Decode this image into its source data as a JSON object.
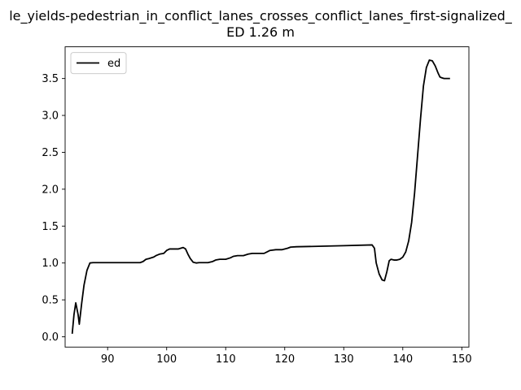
{
  "chart_data": {
    "type": "line",
    "title": "le_yields-pedestrian_in_conflict_lanes_crosses_conflict_lanes_first-signalized_",
    "subtitle": "ED 1.26 m",
    "xlabel": "",
    "ylabel": "",
    "xlim": [
      82.8,
      151.2
    ],
    "ylim": [
      -0.14,
      3.93
    ],
    "xticks": [
      90,
      100,
      110,
      120,
      130,
      140,
      150
    ],
    "yticks": [
      0.0,
      0.5,
      1.0,
      1.5,
      2.0,
      2.5,
      3.0,
      3.5
    ],
    "xtick_labels": [
      "90",
      "100",
      "110",
      "120",
      "130",
      "140",
      "150"
    ],
    "ytick_labels": [
      "0.0",
      "0.5",
      "1.0",
      "1.5",
      "2.0",
      "2.5",
      "3.0",
      "3.5"
    ],
    "grid": false,
    "legend": {
      "position": "top-left",
      "entries": [
        "ed"
      ]
    },
    "series": [
      {
        "name": "ed",
        "color": "#000000",
        "x": [
          84.0,
          84.3,
          84.6,
          85.0,
          85.2,
          85.6,
          86.0,
          86.5,
          87.0,
          87.5,
          89.0,
          92.0,
          95.5,
          96.0,
          96.5,
          97.0,
          97.8,
          98.2,
          98.8,
          99.5,
          100.0,
          100.5,
          101.0,
          102.0,
          102.8,
          103.2,
          103.6,
          104.0,
          104.5,
          105.0,
          105.5,
          106.0,
          107.0,
          107.8,
          108.3,
          109.0,
          110.0,
          110.8,
          111.3,
          112.0,
          113.0,
          113.8,
          114.5,
          115.5,
          116.5,
          117.0,
          117.5,
          118.5,
          119.5,
          120.5,
          121.0,
          122.0,
          125.0,
          130.0,
          134.8,
          135.2,
          135.5,
          136.0,
          136.5,
          136.9,
          137.3,
          137.7,
          138.0,
          138.5,
          139.0,
          139.5,
          140.0,
          140.5,
          141.0,
          141.5,
          142.0,
          142.5,
          143.0,
          143.5,
          144.0,
          144.5,
          145.0,
          145.5,
          146.0,
          146.3,
          146.6,
          147.0,
          147.5,
          148.0
        ],
        "y": [
          0.04,
          0.3,
          0.46,
          0.3,
          0.17,
          0.45,
          0.7,
          0.9,
          1.0,
          1.005,
          1.005,
          1.005,
          1.005,
          1.02,
          1.05,
          1.06,
          1.08,
          1.1,
          1.12,
          1.13,
          1.17,
          1.19,
          1.19,
          1.19,
          1.21,
          1.19,
          1.12,
          1.06,
          1.01,
          1.0,
          1.005,
          1.005,
          1.005,
          1.02,
          1.04,
          1.05,
          1.05,
          1.07,
          1.09,
          1.1,
          1.1,
          1.12,
          1.13,
          1.13,
          1.13,
          1.15,
          1.17,
          1.18,
          1.18,
          1.2,
          1.215,
          1.22,
          1.225,
          1.235,
          1.245,
          1.2,
          1.0,
          0.85,
          0.77,
          0.76,
          0.88,
          1.03,
          1.05,
          1.04,
          1.04,
          1.05,
          1.08,
          1.15,
          1.3,
          1.55,
          1.95,
          2.45,
          2.95,
          3.4,
          3.65,
          3.75,
          3.74,
          3.67,
          3.57,
          3.52,
          3.51,
          3.5,
          3.5,
          3.5
        ]
      }
    ]
  }
}
